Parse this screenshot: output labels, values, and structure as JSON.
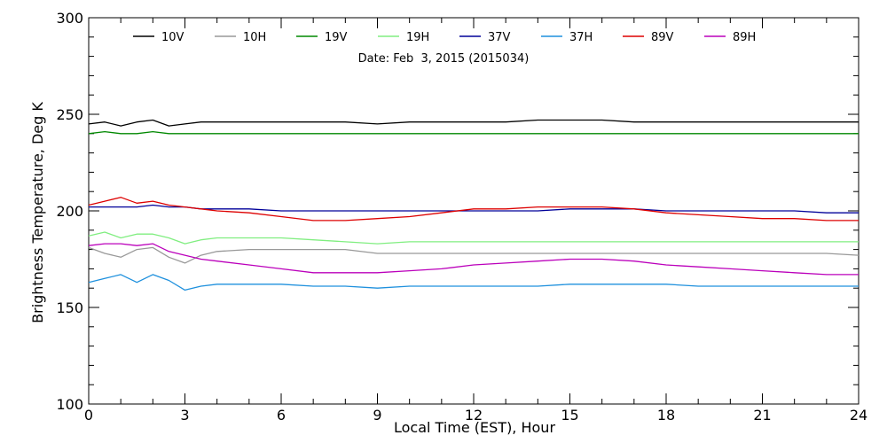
{
  "chart_data": {
    "type": "line",
    "title": "",
    "annotation": "Date: Feb  3, 2015 (2015034)",
    "xlabel": "Local Time (EST), Hour",
    "ylabel": "Brightness Temperature, Deg K",
    "xlim": [
      0,
      24
    ],
    "ylim": [
      100,
      300
    ],
    "xticks": [
      0,
      3,
      6,
      9,
      12,
      15,
      18,
      21,
      24
    ],
    "yticks": [
      100,
      150,
      200,
      250,
      300
    ],
    "x": [
      0,
      0.5,
      1,
      1.5,
      2,
      2.5,
      3,
      3.5,
      4,
      5,
      6,
      7,
      8,
      9,
      10,
      11,
      12,
      13,
      14,
      15,
      16,
      17,
      18,
      19,
      20,
      21,
      22,
      23,
      24
    ],
    "grid": false,
    "legend_position": "top",
    "series": [
      {
        "name": "10V",
        "color": "#000000",
        "values": [
          245,
          246,
          244,
          246,
          247,
          244,
          245,
          246,
          246,
          246,
          246,
          246,
          246,
          245,
          246,
          246,
          246,
          246,
          247,
          247,
          247,
          246,
          246,
          246,
          246,
          246,
          246,
          246,
          246
        ]
      },
      {
        "name": "10H",
        "color": "#999999",
        "values": [
          181,
          178,
          176,
          180,
          181,
          176,
          173,
          177,
          179,
          180,
          180,
          180,
          180,
          178,
          178,
          178,
          178,
          178,
          178,
          178,
          178,
          178,
          178,
          178,
          178,
          178,
          178,
          178,
          177
        ]
      },
      {
        "name": "19V",
        "color": "#008800",
        "values": [
          240,
          241,
          240,
          240,
          241,
          240,
          240,
          240,
          240,
          240,
          240,
          240,
          240,
          240,
          240,
          240,
          240,
          240,
          240,
          240,
          240,
          240,
          240,
          240,
          240,
          240,
          240,
          240,
          240
        ]
      },
      {
        "name": "19H",
        "color": "#80ee80",
        "values": [
          187,
          189,
          186,
          188,
          188,
          186,
          183,
          185,
          186,
          186,
          186,
          185,
          184,
          183,
          184,
          184,
          184,
          184,
          184,
          184,
          184,
          184,
          184,
          184,
          184,
          184,
          184,
          184,
          184
        ]
      },
      {
        "name": "37V",
        "color": "#000099",
        "values": [
          202,
          202,
          202,
          202,
          203,
          202,
          202,
          201,
          201,
          201,
          200,
          200,
          200,
          200,
          200,
          200,
          200,
          200,
          200,
          201,
          201,
          201,
          200,
          200,
          200,
          200,
          200,
          199,
          199
        ]
      },
      {
        "name": "37H",
        "color": "#1e90dd",
        "values": [
          163,
          165,
          167,
          163,
          167,
          164,
          159,
          161,
          162,
          162,
          162,
          161,
          161,
          160,
          161,
          161,
          161,
          161,
          161,
          162,
          162,
          162,
          162,
          161,
          161,
          161,
          161,
          161,
          161
        ]
      },
      {
        "name": "89V",
        "color": "#dd0000",
        "values": [
          203,
          205,
          207,
          204,
          205,
          203,
          202,
          201,
          200,
          199,
          197,
          195,
          195,
          196,
          197,
          199,
          201,
          201,
          202,
          202,
          202,
          201,
          199,
          198,
          197,
          196,
          196,
          195,
          195
        ]
      },
      {
        "name": "89H",
        "color": "#bb00bb",
        "values": [
          182,
          183,
          183,
          182,
          183,
          179,
          177,
          175,
          174,
          172,
          170,
          168,
          168,
          168,
          169,
          170,
          172,
          173,
          174,
          175,
          175,
          174,
          172,
          171,
          170,
          169,
          168,
          167,
          167
        ]
      }
    ]
  }
}
